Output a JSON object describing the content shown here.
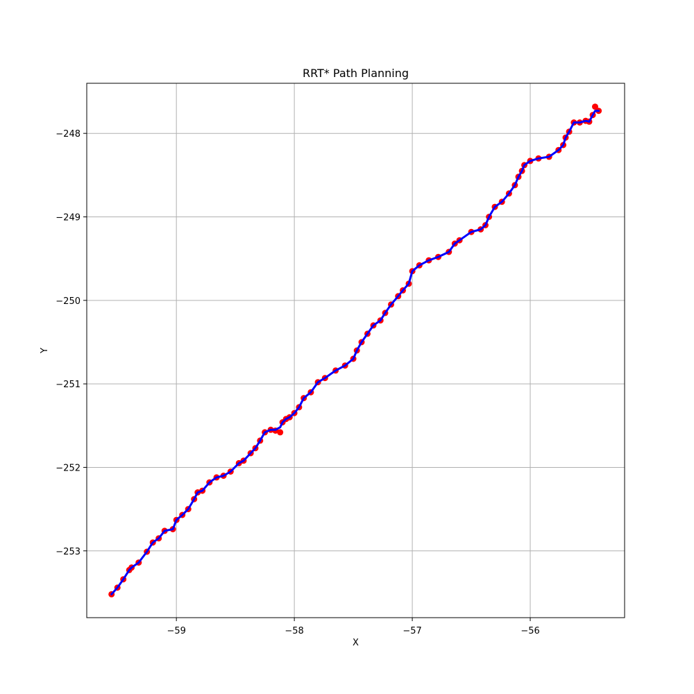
{
  "chart_data": {
    "type": "scatter",
    "title": "RRT* Path Planning",
    "xlabel": "X",
    "ylabel": "Y",
    "xlim": [
      -59.76,
      -55.2
    ],
    "ylim": [
      -253.8,
      -247.4
    ],
    "xticks": [
      -59,
      -58,
      -57,
      -56
    ],
    "yticks": [
      -248,
      -249,
      -250,
      -251,
      -252,
      -253
    ],
    "grid": true,
    "colors": {
      "nodes": "#ff0000",
      "path": "#0000ff",
      "grid": "#b0b0b0"
    },
    "series": [
      {
        "kind": "points",
        "x": [
          -59.55,
          -59.5,
          -59.45,
          -59.4,
          -59.38,
          -59.32,
          -59.25,
          -59.2,
          -59.15,
          -59.1,
          -59.03,
          -59.0,
          -58.95,
          -58.9,
          -58.85,
          -58.82,
          -58.78,
          -58.72,
          -58.66,
          -58.6,
          -58.54,
          -58.47,
          -58.43,
          -58.37,
          -58.33,
          -58.29,
          -58.25,
          -58.2,
          -58.16,
          -58.12,
          -58.1,
          -58.07,
          -58.04,
          -58.0,
          -57.96,
          -57.92,
          -57.86,
          -57.8,
          -57.74,
          -57.65,
          -57.57,
          -57.5,
          -57.47,
          -57.43,
          -57.38,
          -57.33,
          -57.27,
          -57.23,
          -57.18,
          -57.12,
          -57.08,
          -57.03,
          -57.0,
          -56.94,
          -56.86,
          -56.78,
          -56.69,
          -56.64,
          -56.6,
          -56.5,
          -56.42,
          -56.38,
          -56.35,
          -56.3,
          -56.24,
          -56.18,
          -56.13,
          -56.1,
          -56.07,
          -56.05,
          -56.0,
          -55.93,
          -55.84,
          -55.76,
          -55.72,
          -55.7,
          -55.67,
          -55.63,
          -55.58,
          -55.53,
          -55.5,
          -55.47,
          -55.45,
          -55.42
        ],
        "y": [
          -253.52,
          -253.44,
          -253.34,
          -253.23,
          -253.2,
          -253.14,
          -253.01,
          -252.9,
          -252.85,
          -252.76,
          -252.74,
          -252.63,
          -252.57,
          -252.5,
          -252.38,
          -252.3,
          -252.28,
          -252.18,
          -252.12,
          -252.1,
          -252.05,
          -251.95,
          -251.92,
          -251.83,
          -251.77,
          -251.68,
          -251.58,
          -251.55,
          -251.56,
          -251.58,
          -251.46,
          -251.42,
          -251.4,
          -251.35,
          -251.28,
          -251.17,
          -251.1,
          -250.98,
          -250.93,
          -250.84,
          -250.78,
          -250.7,
          -250.6,
          -250.5,
          -250.4,
          -250.3,
          -250.24,
          -250.15,
          -250.05,
          -249.95,
          -249.88,
          -249.8,
          -249.65,
          -249.58,
          -249.52,
          -249.48,
          -249.42,
          -249.32,
          -249.28,
          -249.18,
          -249.15,
          -249.1,
          -249.0,
          -248.88,
          -248.82,
          -248.72,
          -248.62,
          -248.52,
          -248.45,
          -248.38,
          -248.33,
          -248.3,
          -248.28,
          -248.2,
          -248.14,
          -248.05,
          -247.98,
          -247.87,
          -247.87,
          -247.85,
          -247.86,
          -247.78,
          -247.68,
          -247.73
        ]
      },
      {
        "kind": "path",
        "x": [
          -59.55,
          -59.5,
          -59.45,
          -59.4,
          -59.38,
          -59.32,
          -59.25,
          -59.2,
          -59.15,
          -59.1,
          -59.03,
          -59.0,
          -58.95,
          -58.9,
          -58.85,
          -58.82,
          -58.78,
          -58.72,
          -58.66,
          -58.6,
          -58.54,
          -58.47,
          -58.43,
          -58.37,
          -58.33,
          -58.29,
          -58.25,
          -58.2,
          -58.16,
          -58.12,
          -58.1,
          -58.07,
          -58.04,
          -58.0,
          -57.96,
          -57.92,
          -57.86,
          -57.8,
          -57.74,
          -57.65,
          -57.57,
          -57.5,
          -57.47,
          -57.43,
          -57.38,
          -57.33,
          -57.27,
          -57.23,
          -57.18,
          -57.12,
          -57.08,
          -57.03,
          -57.0,
          -56.94,
          -56.86,
          -56.78,
          -56.69,
          -56.64,
          -56.6,
          -56.5,
          -56.42,
          -56.38,
          -56.35,
          -56.3,
          -56.24,
          -56.18,
          -56.13,
          -56.1,
          -56.07,
          -56.05,
          -56.0,
          -55.93,
          -55.84,
          -55.76,
          -55.72,
          -55.7,
          -55.67,
          -55.63,
          -55.58,
          -55.53,
          -55.5,
          -55.47,
          -55.45,
          -55.42
        ],
        "y": [
          -253.52,
          -253.44,
          -253.34,
          -253.23,
          -253.2,
          -253.14,
          -253.01,
          -252.9,
          -252.85,
          -252.76,
          -252.74,
          -252.63,
          -252.57,
          -252.5,
          -252.38,
          -252.3,
          -252.28,
          -252.18,
          -252.12,
          -252.1,
          -252.05,
          -251.95,
          -251.92,
          -251.83,
          -251.77,
          -251.68,
          -251.58,
          -251.55,
          -251.55,
          -251.52,
          -251.46,
          -251.42,
          -251.4,
          -251.35,
          -251.28,
          -251.17,
          -251.1,
          -250.98,
          -250.93,
          -250.84,
          -250.78,
          -250.7,
          -250.6,
          -250.5,
          -250.4,
          -250.3,
          -250.24,
          -250.15,
          -250.05,
          -249.95,
          -249.88,
          -249.8,
          -249.65,
          -249.58,
          -249.52,
          -249.48,
          -249.42,
          -249.32,
          -249.28,
          -249.18,
          -249.15,
          -249.1,
          -249.0,
          -248.88,
          -248.82,
          -248.72,
          -248.62,
          -248.52,
          -248.45,
          -248.38,
          -248.33,
          -248.3,
          -248.28,
          -248.2,
          -248.14,
          -248.05,
          -247.98,
          -247.87,
          -247.87,
          -247.85,
          -247.86,
          -247.78,
          -247.73,
          -247.73
        ]
      }
    ]
  }
}
